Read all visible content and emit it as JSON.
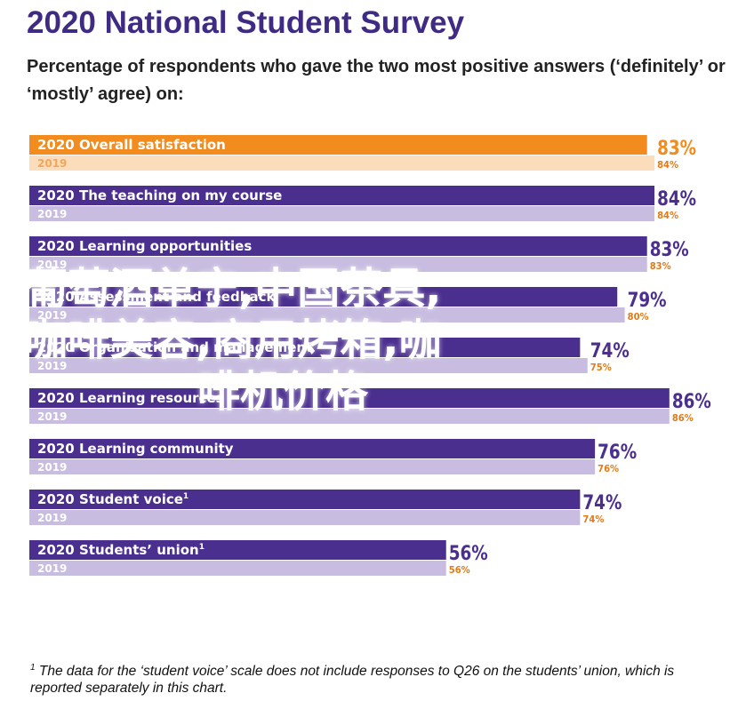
{
  "header": {
    "title": "2020 National Student Survey",
    "subtitle": "Percentage of respondents who gave the two most positive answers (‘definitely’ or ‘mostly’ agree) on:"
  },
  "footnote": {
    "marker": "1",
    "text": "The data for the ‘student voice’ scale does not include responses to Q26 on the students’ union, which is reported separately in this chart."
  },
  "watermark": {
    "line1": "葡萄酒单宁,中国茶具,",
    "line2": "咖啡美容,商用烤箱,咖",
    "line3": "啡机价格"
  },
  "chart_data": {
    "type": "bar",
    "orientation": "horizontal",
    "xlim": [
      0,
      100
    ],
    "unit": "%",
    "series": [
      {
        "name": "2020",
        "values": [
          83,
          84,
          83,
          79,
          74,
          86,
          76,
          74,
          56
        ]
      },
      {
        "name": "2019",
        "values": [
          84,
          84,
          83,
          80,
          75,
          86,
          76,
          74,
          56
        ]
      }
    ],
    "categories": [
      {
        "label": "Overall satisfaction",
        "sup": ""
      },
      {
        "label": "The teaching on my course",
        "sup": ""
      },
      {
        "label": "Learning opportunities",
        "sup": ""
      },
      {
        "label": "Assessment and feedback",
        "sup": ""
      },
      {
        "label": "Organisation and management",
        "sup": ""
      },
      {
        "label": "Learning resources",
        "sup": ""
      },
      {
        "label": "Learning community",
        "sup": ""
      },
      {
        "label": "Student voice",
        "sup": "1"
      },
      {
        "label": "Students’ union",
        "sup": "1"
      }
    ],
    "value_labels_2020": [
      "83%",
      "84%",
      "83%",
      "79%",
      "74%",
      "86%",
      "76%",
      "74%",
      "56%"
    ],
    "value_labels_2019": [
      "84%",
      "84%",
      "83%",
      "80%",
      "75%",
      "86%",
      "76%",
      "74%",
      "56%"
    ],
    "colors": {
      "highlight_2020": "#f28c1e",
      "highlight_2019": "#fbdcbb",
      "bar_2020": "#4b2f8f",
      "bar_2019": "#c8bde0",
      "label_2020_text": "#ffffff",
      "label_2019_text": "#ffffff",
      "highlight_value": "#f28c1e",
      "value_2020": "#4b2f8f",
      "value_2019": "#e07a1a"
    }
  }
}
